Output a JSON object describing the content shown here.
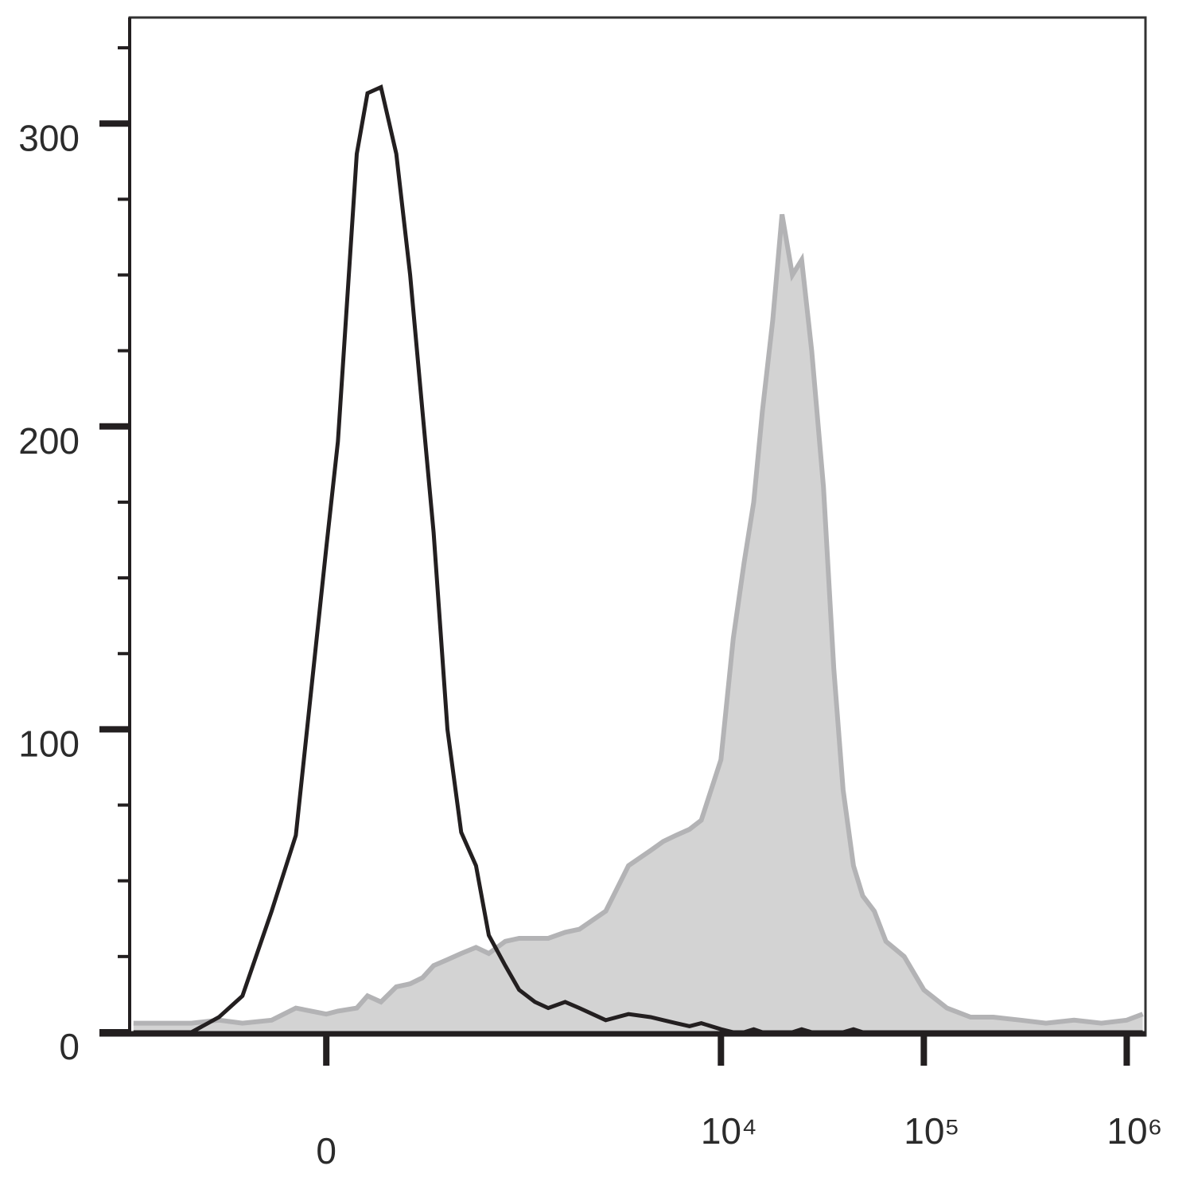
{
  "chart_data": {
    "type": "histogram-overlay",
    "xscale": "biexponential",
    "x": [
      -1000,
      -700,
      -500,
      -350,
      -250,
      -150,
      -80,
      0,
      30,
      80,
      110,
      150,
      200,
      250,
      300,
      350,
      420,
      500,
      600,
      700,
      850,
      1000,
      1200,
      1400,
      1700,
      2000,
      2700,
      3500,
      4500,
      5200,
      6000,
      7000,
      8000,
      10000,
      11500,
      13000,
      14500,
      16000,
      18000,
      20000,
      22500,
      25000,
      28000,
      32000,
      36000,
      40000,
      45000,
      50000,
      57000,
      65000,
      80000,
      100000,
      130000,
      170000,
      220000,
      300000,
      400000,
      550000,
      750000,
      1000000,
      1200000
    ],
    "series": [
      {
        "color": "#b3b3b5",
        "fill": "#d3d3d3",
        "filled": true,
        "values": [
          3,
          3,
          3,
          4,
          3,
          4,
          8,
          6,
          7,
          8,
          12,
          10,
          15,
          16,
          18,
          22,
          24,
          26,
          28,
          26,
          30,
          31,
          31,
          31,
          33,
          34,
          40,
          55,
          60,
          63,
          65,
          67,
          70,
          90,
          130,
          155,
          175,
          205,
          235,
          270,
          250,
          255,
          225,
          180,
          120,
          80,
          55,
          45,
          40,
          30,
          25,
          14,
          8,
          5,
          5,
          4,
          3,
          4,
          3,
          4,
          6
        ]
      },
      {
        "color": "#231f20",
        "filled": false,
        "values": [
          0,
          0,
          0,
          5,
          12,
          40,
          65,
          160,
          195,
          290,
          310,
          312,
          290,
          250,
          205,
          165,
          100,
          66,
          55,
          32,
          22,
          14,
          10,
          8,
          10,
          8,
          4,
          6,
          5,
          4,
          3,
          2,
          3,
          1,
          0,
          0,
          1,
          0,
          0,
          0,
          0,
          1,
          0,
          0,
          0,
          0,
          1,
          0,
          0,
          0,
          0,
          0,
          0,
          0,
          0,
          0,
          0,
          0,
          0,
          0,
          0
        ]
      }
    ],
    "xlim": [
      -1045,
      1237000
    ],
    "xticks": [
      {
        "value": 0,
        "label": "0"
      },
      {
        "value": 10000,
        "label": "10⁴"
      },
      {
        "value": 100000,
        "label": "10⁵"
      },
      {
        "value": 1000000,
        "label": "10⁶"
      }
    ],
    "ylim": [
      0,
      335
    ],
    "yticks": [
      0,
      100,
      200,
      300
    ],
    "yminor_ticks": [
      25,
      50,
      75,
      125,
      150,
      175,
      225,
      250,
      275,
      325
    ]
  }
}
